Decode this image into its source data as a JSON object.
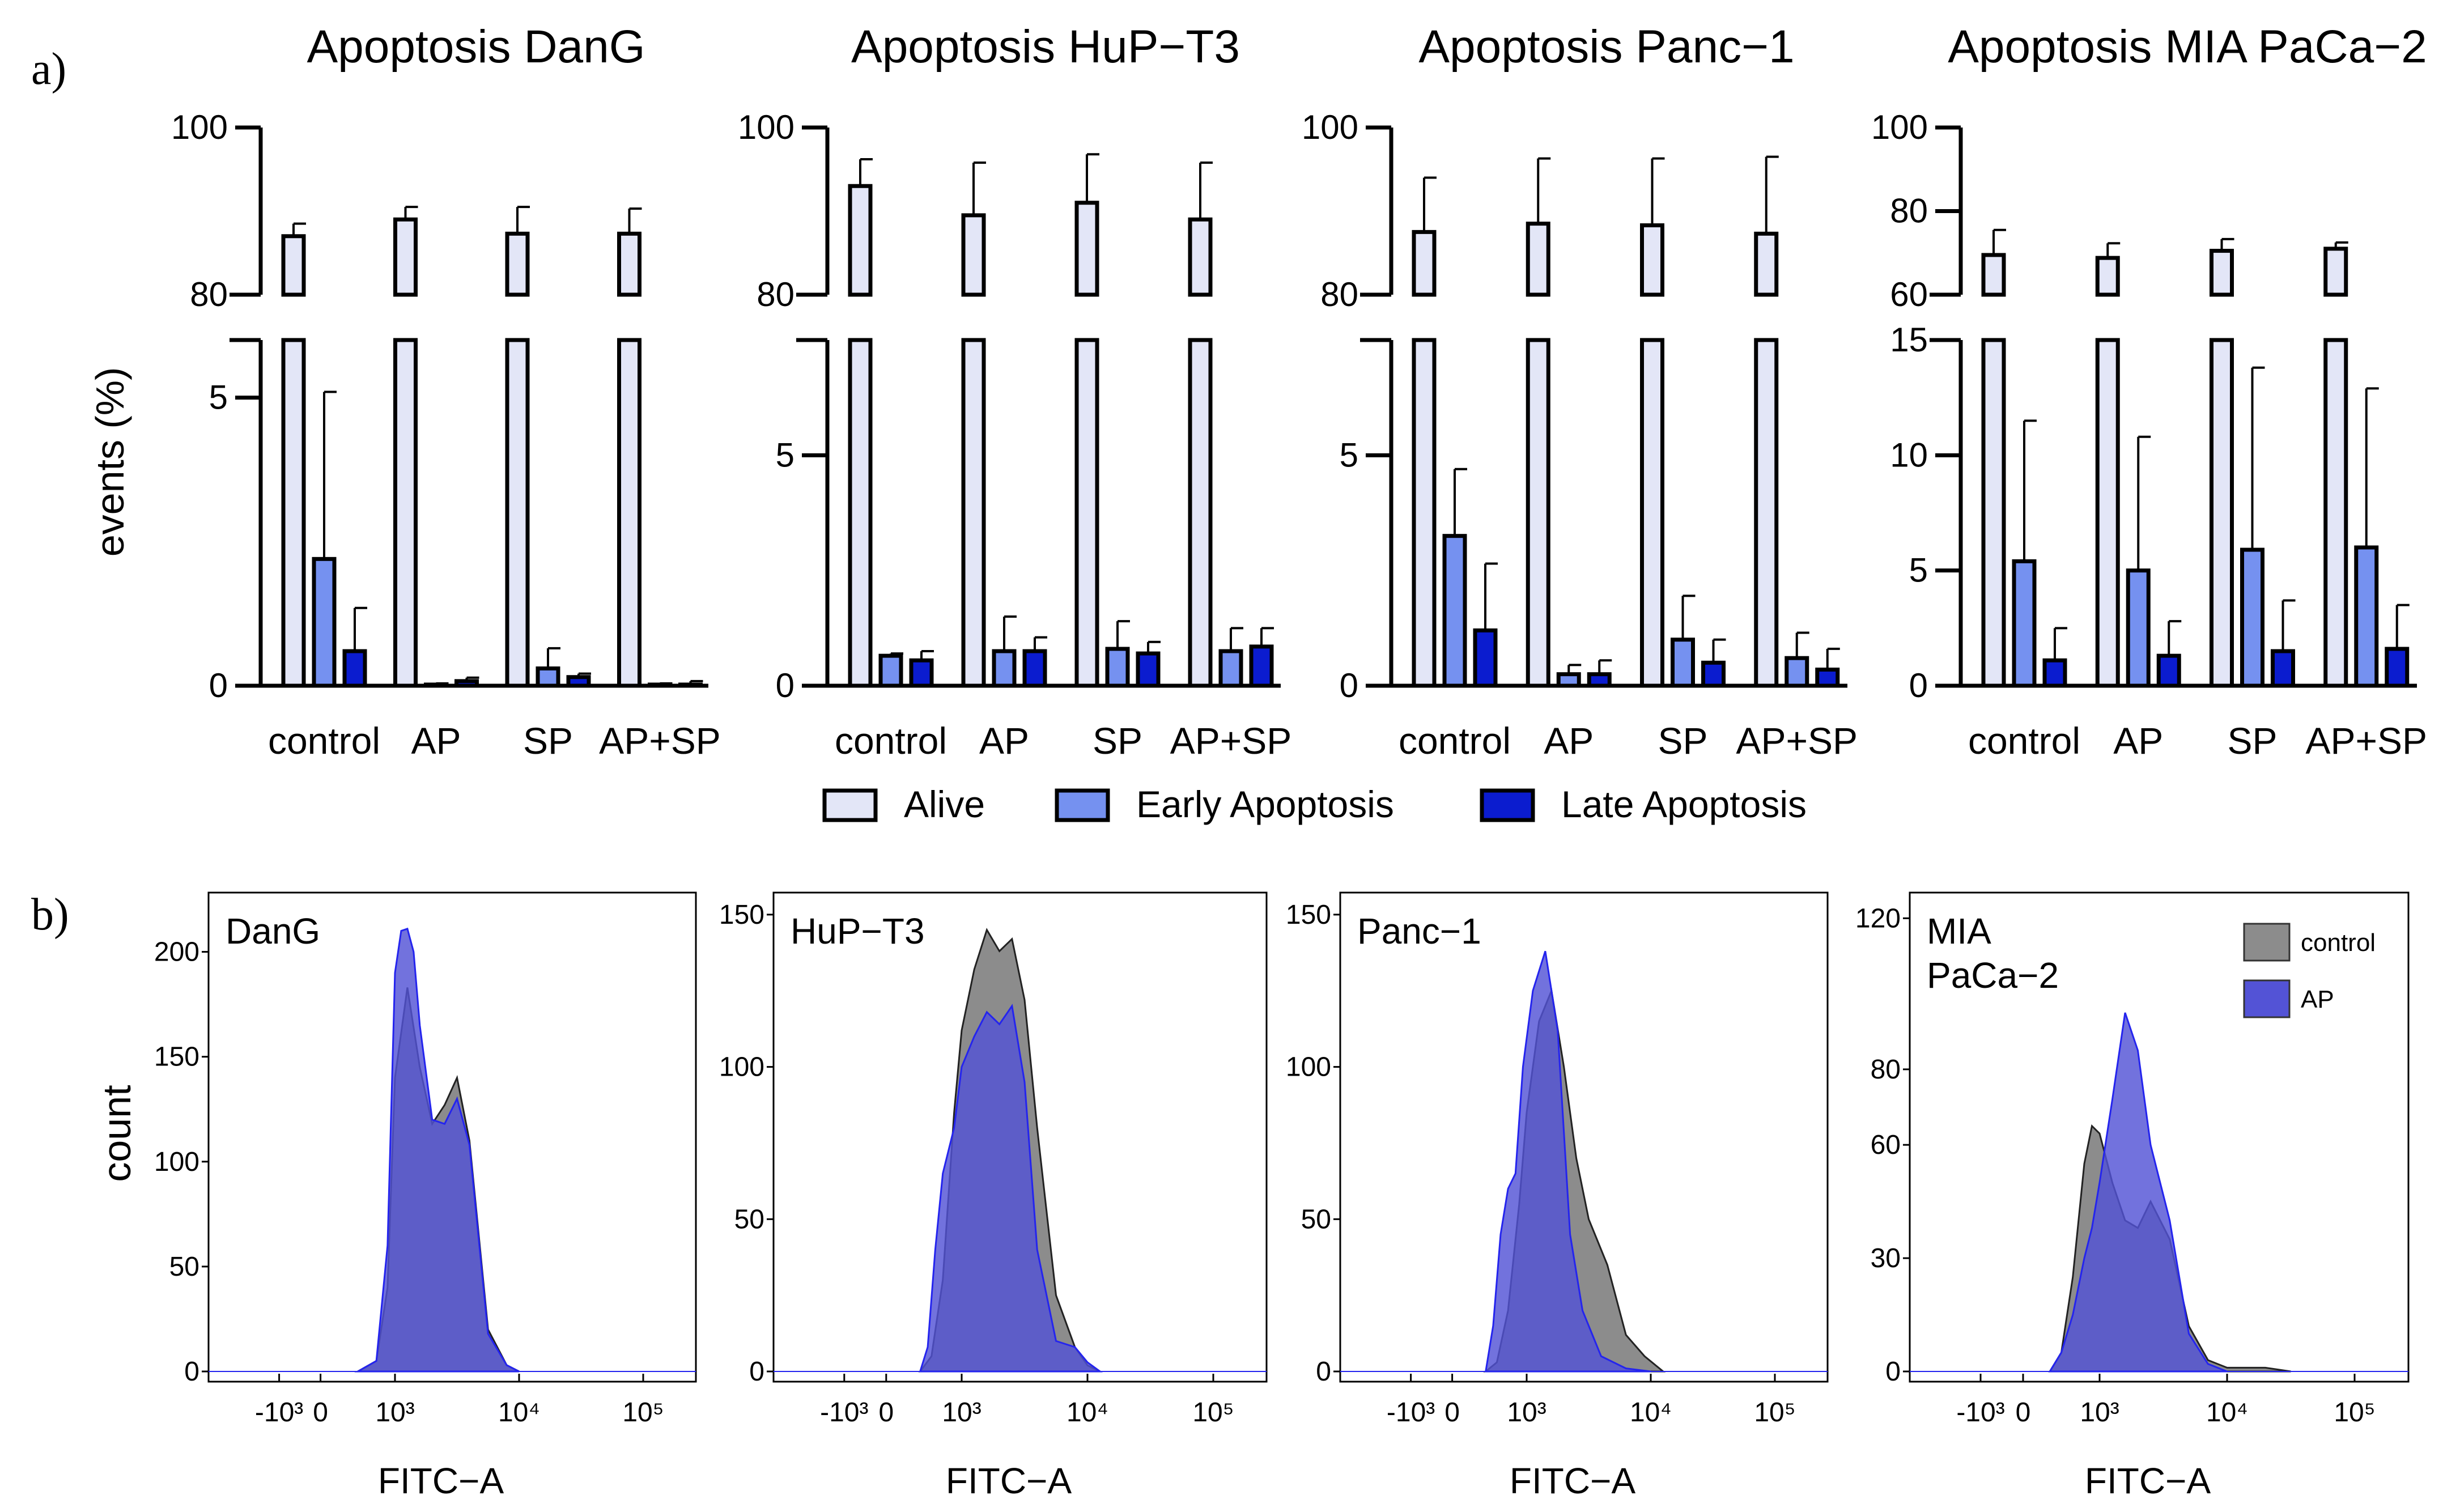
{
  "panel_labels": [
    "a)",
    "b)"
  ],
  "bar_ylabel": "events (%)",
  "categories": [
    "control",
    "AP",
    "SP",
    "AP+SP"
  ],
  "legend": [
    "Alive",
    "Early Apoptosis",
    "Late Apoptosis"
  ],
  "colors": {
    "alive": "#e3e6f7",
    "early": "#7591f0",
    "late": "#0b1ccf",
    "axis": "#000000",
    "hist_control": "#8c8c8c",
    "hist_ap": "#5353d6",
    "hist_ap_line": "#2424ee"
  },
  "hist_legend": [
    "control",
    "AP"
  ],
  "hist_ylabel": "count",
  "hist_xlabel": "FITC−A",
  "hist_xticks": [
    "-10³",
    "0",
    "10³",
    "10⁴",
    "10⁵"
  ],
  "chart_data": [
    {
      "type": "bar",
      "title": "Apoptosis DanG",
      "ylabel": "events (%)",
      "upper_ylim": [
        80,
        100
      ],
      "upper_ticks": [
        "100",
        "80"
      ],
      "lower_ylim": [
        0,
        6
      ],
      "lower_ticks": [
        "5",
        "0"
      ],
      "series": [
        {
          "name": "Alive",
          "values": [
            87,
            89,
            87.3,
            87.3
          ],
          "err": [
            1.5,
            1.5,
            3.2,
            3.0
          ]
        },
        {
          "name": "Early Apoptosis",
          "values": [
            2.2,
            0.02,
            0.3,
            0.02
          ],
          "err": [
            2.9,
            0.02,
            0.35,
            0.02
          ]
        },
        {
          "name": "Late Apoptosis",
          "values": [
            0.6,
            0.08,
            0.15,
            0.02
          ],
          "err": [
            0.75,
            0.06,
            0.06,
            0.06
          ]
        }
      ]
    },
    {
      "type": "bar",
      "title": "Apoptosis HuP−T3",
      "ylabel": "events (%)",
      "upper_ylim": [
        80,
        100
      ],
      "upper_ticks": [
        "100",
        "80"
      ],
      "lower_ylim": [
        0,
        7.5
      ],
      "lower_ticks": [
        "5",
        "0"
      ],
      "series": [
        {
          "name": "Alive",
          "values": [
            93,
            89.5,
            91,
            89
          ],
          "err": [
            3.2,
            6.3,
            5.8,
            6.8
          ]
        },
        {
          "name": "Early Apoptosis",
          "values": [
            0.65,
            0.75,
            0.8,
            0.75
          ],
          "err": [
            0.05,
            0.75,
            0.6,
            0.5
          ]
        },
        {
          "name": "Late Apoptosis",
          "values": [
            0.55,
            0.75,
            0.7,
            0.85
          ],
          "err": [
            0.2,
            0.3,
            0.25,
            0.4
          ]
        }
      ]
    },
    {
      "type": "bar",
      "title": "Apoptosis Panc−1",
      "ylabel": "events (%)",
      "upper_ylim": [
        80,
        100
      ],
      "upper_ticks": [
        "100",
        "80"
      ],
      "lower_ylim": [
        0,
        7.5
      ],
      "lower_ticks": [
        "5",
        "0"
      ],
      "series": [
        {
          "name": "Alive",
          "values": [
            87.5,
            88.5,
            88.3,
            87.3
          ],
          "err": [
            6.5,
            7.8,
            8.0,
            9.2
          ]
        },
        {
          "name": "Early Apoptosis",
          "values": [
            3.25,
            0.25,
            1.0,
            0.6
          ],
          "err": [
            1.45,
            0.2,
            0.95,
            0.55
          ]
        },
        {
          "name": "Late Apoptosis",
          "values": [
            1.2,
            0.25,
            0.5,
            0.35
          ],
          "err": [
            1.45,
            0.3,
            0.5,
            0.45
          ]
        }
      ]
    },
    {
      "type": "bar",
      "title": "Apoptosis MIA PaCa−2",
      "ylabel": "events (%)",
      "upper_ylim": [
        60,
        100
      ],
      "upper_ticks": [
        "100",
        "80",
        "60"
      ],
      "lower_ylim": [
        0,
        15
      ],
      "lower_ticks": [
        "15",
        "10",
        "5",
        "0"
      ],
      "series": [
        {
          "name": "Alive",
          "values": [
            69.5,
            68.8,
            70.5,
            71
          ],
          "err": [
            6,
            3.5,
            2.8,
            1.5
          ]
        },
        {
          "name": "Early Apoptosis",
          "values": [
            5.4,
            5.0,
            5.9,
            6.0
          ],
          "err": [
            6.1,
            5.8,
            7.9,
            6.9
          ]
        },
        {
          "name": "Late Apoptosis",
          "values": [
            1.1,
            1.3,
            1.5,
            1.6
          ],
          "err": [
            1.4,
            1.5,
            2.2,
            1.9
          ]
        }
      ]
    },
    {
      "type": "area",
      "name": "DanG",
      "xlabel": "FITC−A",
      "ylabel": "count",
      "ylim": [
        0,
        225
      ],
      "yticks": [
        "0",
        "50",
        "100",
        "150",
        "200"
      ],
      "x_decades": [
        -1,
        0,
        1,
        2,
        3
      ],
      "control": {
        "x": [
          0.5,
          0.75,
          0.9,
          1.0,
          1.1,
          1.2,
          1.3,
          1.4,
          1.5,
          1.6,
          1.75,
          1.9,
          2.0
        ],
        "y": [
          0,
          5,
          40,
          140,
          183,
          145,
          118,
          127,
          140,
          110,
          20,
          3,
          0
        ]
      },
      "AP": {
        "x": [
          0.5,
          0.75,
          0.9,
          1.0,
          1.05,
          1.1,
          1.15,
          1.2,
          1.3,
          1.4,
          1.5,
          1.6,
          1.75,
          1.9,
          2.0
        ],
        "y": [
          0,
          5,
          60,
          190,
          210,
          211,
          200,
          165,
          120,
          118,
          130,
          108,
          18,
          3,
          0
        ]
      }
    },
    {
      "type": "area",
      "name": "HuP−T3",
      "xlabel": "FITC−A",
      "ylabel": "count",
      "ylim": [
        0,
        155
      ],
      "yticks": [
        "0",
        "50",
        "100",
        "150"
      ],
      "x_decades": [
        -1,
        0,
        1,
        2,
        3
      ],
      "control": {
        "x": [
          0.45,
          0.6,
          0.75,
          0.9,
          1.0,
          1.1,
          1.2,
          1.3,
          1.4,
          1.5,
          1.6,
          1.75,
          1.9,
          2.0,
          2.1
        ],
        "y": [
          0,
          5,
          30,
          85,
          112,
          132,
          145,
          138,
          142,
          122,
          80,
          25,
          8,
          2,
          0
        ]
      },
      "AP": {
        "x": [
          0.45,
          0.55,
          0.65,
          0.75,
          0.9,
          1.0,
          1.1,
          1.2,
          1.3,
          1.4,
          1.5,
          1.6,
          1.75,
          1.9,
          2.0,
          2.1
        ],
        "y": [
          0,
          8,
          40,
          65,
          80,
          100,
          110,
          118,
          114,
          120,
          95,
          40,
          10,
          8,
          3,
          0
        ]
      }
    },
    {
      "type": "area",
      "name": "Panc−1",
      "xlabel": "FITC−A",
      "ylabel": "count",
      "ylim": [
        0,
        155
      ],
      "yticks": [
        "0",
        "50",
        "100",
        "150"
      ],
      "x_decades": [
        -1,
        0,
        1,
        2,
        3
      ],
      "control": {
        "x": [
          0.45,
          0.6,
          0.75,
          0.9,
          1.0,
          1.1,
          1.2,
          1.3,
          1.4,
          1.5,
          1.65,
          1.8,
          1.95,
          2.1
        ],
        "y": [
          0,
          3,
          20,
          55,
          85,
          115,
          125,
          100,
          70,
          50,
          35,
          12,
          5,
          0
        ]
      },
      "AP": {
        "x": [
          0.45,
          0.55,
          0.65,
          0.75,
          0.85,
          0.95,
          1.05,
          1.15,
          1.25,
          1.35,
          1.45,
          1.6,
          1.8,
          2.0
        ],
        "y": [
          0,
          15,
          45,
          60,
          65,
          100,
          125,
          138,
          112,
          45,
          20,
          5,
          1,
          0
        ]
      }
    },
    {
      "type": "area",
      "name": "MIA\nPaCa−2",
      "xlabel": "FITC−A",
      "ylabel": "count",
      "ylim": [
        0,
        125
      ],
      "yticks": [
        "0",
        "30",
        "60",
        "80",
        "120"
      ],
      "x_decades": [
        -1,
        0,
        1,
        2,
        3
      ],
      "control": {
        "x": [
          0.35,
          0.5,
          0.65,
          0.8,
          0.9,
          1.0,
          1.1,
          1.2,
          1.3,
          1.4,
          1.55,
          1.7,
          1.85,
          2.0,
          2.3,
          2.5
        ],
        "y": [
          0,
          5,
          25,
          55,
          65,
          63,
          50,
          40,
          38,
          45,
          35,
          12,
          3,
          1,
          1,
          0
        ]
      },
      "AP": {
        "x": [
          0.35,
          0.5,
          0.65,
          0.8,
          0.9,
          1.0,
          1.1,
          1.2,
          1.3,
          1.4,
          1.55,
          1.7,
          1.85,
          2.0
        ],
        "y": [
          0,
          5,
          15,
          30,
          38,
          50,
          72,
          95,
          85,
          60,
          40,
          10,
          2,
          0
        ]
      }
    }
  ]
}
